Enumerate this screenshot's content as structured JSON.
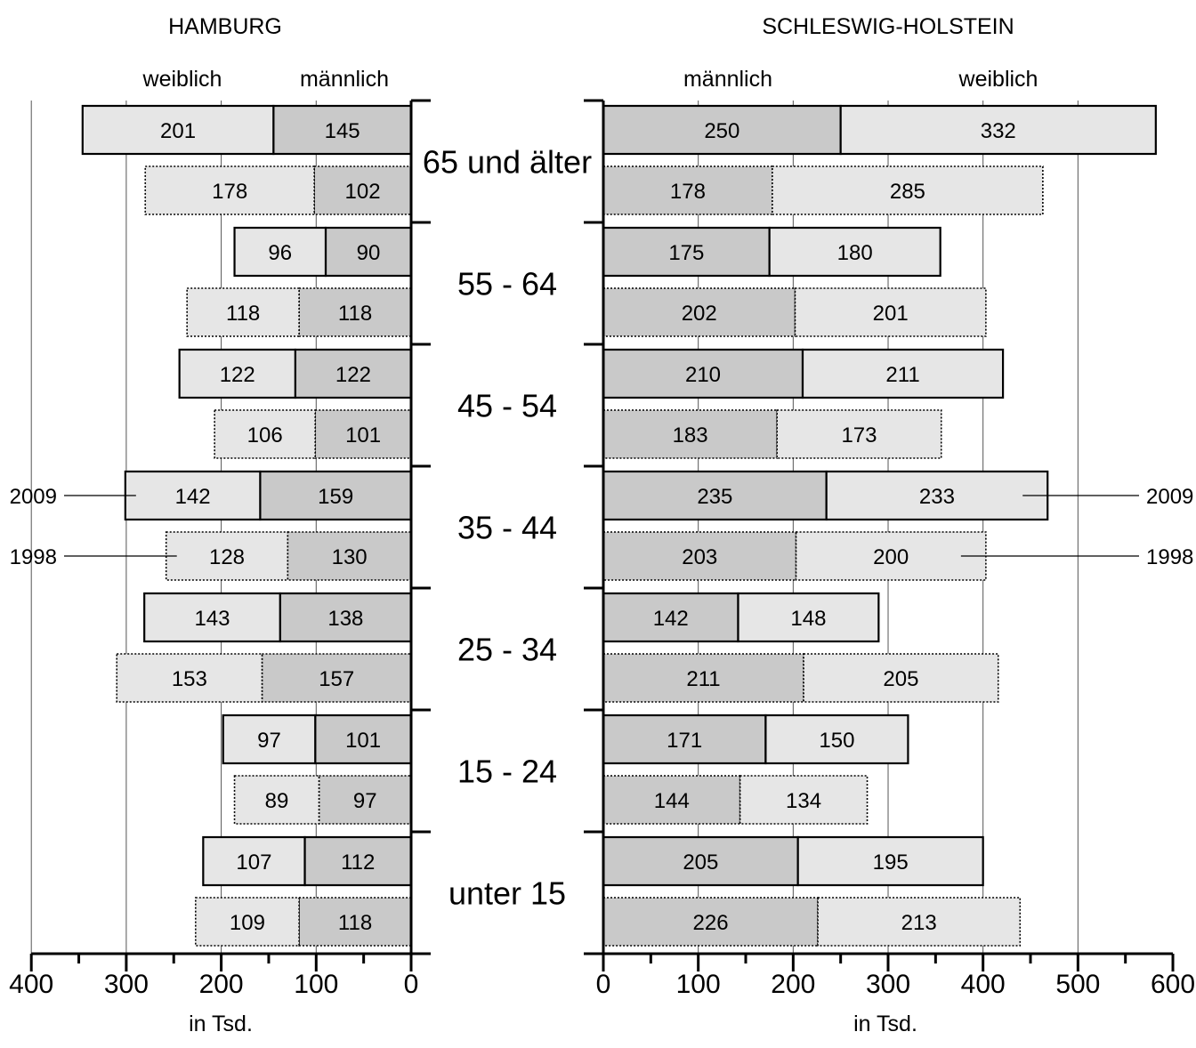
{
  "chart_data": [
    {
      "type": "bar",
      "title": "HAMBURG",
      "xlabel": "in Tsd.",
      "orientation": "horizontal",
      "direction": "right-to-left",
      "xlim": [
        0,
        400
      ],
      "xticks": [
        "400",
        "300",
        "200",
        "100",
        "0"
      ],
      "stack_labels": {
        "inner": "männlich",
        "outer": "weiblich"
      },
      "categories": [
        "65 und älter",
        "55 - 64",
        "45 - 54",
        "35 - 44",
        "25 - 34",
        "15 - 24",
        "unter 15"
      ],
      "series": [
        {
          "name": "männlich",
          "year": "2009",
          "values": [
            145,
            90,
            122,
            159,
            138,
            101,
            112
          ]
        },
        {
          "name": "weiblich",
          "year": "2009",
          "values": [
            201,
            96,
            122,
            142,
            143,
            97,
            107
          ]
        },
        {
          "name": "männlich",
          "year": "1998",
          "values": [
            102,
            118,
            101,
            130,
            157,
            97,
            118
          ]
        },
        {
          "name": "weiblich",
          "year": "1998",
          "values": [
            178,
            118,
            106,
            128,
            153,
            89,
            109
          ]
        }
      ],
      "year_labels": [
        "2009",
        "1998"
      ],
      "grid": true
    },
    {
      "type": "bar",
      "title": "SCHLESWIG-HOLSTEIN",
      "xlabel": "in Tsd.",
      "orientation": "horizontal",
      "direction": "left-to-right",
      "xlim": [
        0,
        600
      ],
      "xticks": [
        "0",
        "100",
        "200",
        "300",
        "400",
        "500",
        "600"
      ],
      "stack_labels": {
        "inner": "männlich",
        "outer": "weiblich"
      },
      "categories": [
        "65 und älter",
        "55 - 64",
        "45 - 54",
        "35 - 44",
        "25 - 34",
        "15 - 24",
        "unter 15"
      ],
      "series": [
        {
          "name": "männlich",
          "year": "2009",
          "values": [
            250,
            175,
            210,
            235,
            142,
            171,
            205
          ]
        },
        {
          "name": "weiblich",
          "year": "2009",
          "values": [
            332,
            180,
            211,
            233,
            148,
            150,
            195
          ]
        },
        {
          "name": "männlich",
          "year": "1998",
          "values": [
            178,
            202,
            183,
            203,
            211,
            144,
            226
          ]
        },
        {
          "name": "weiblich",
          "year": "1998",
          "values": [
            285,
            201,
            173,
            200,
            205,
            134,
            213
          ]
        }
      ],
      "year_labels": [
        "2009",
        "1998"
      ],
      "grid": true
    }
  ],
  "colors": {
    "male": "#c9c9c9",
    "female": "#e6e6e6",
    "stroke": "#000000",
    "grid": "#555555"
  }
}
